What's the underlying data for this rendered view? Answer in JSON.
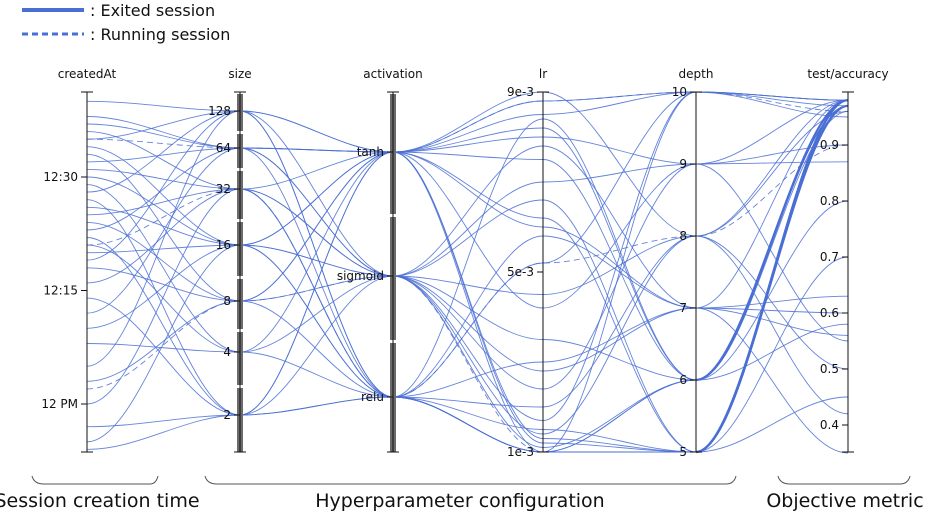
{
  "legend": [
    {
      "label": ": Exited session",
      "style": "solid"
    },
    {
      "label": ": Running session",
      "style": "dashed"
    }
  ],
  "groups": [
    {
      "label": "Session creation time",
      "axes": [
        "createdAt"
      ]
    },
    {
      "label": "Hyperparameter configuration",
      "axes": [
        "size",
        "activation",
        "lr",
        "depth"
      ]
    },
    {
      "label": "Objective metric",
      "axes": [
        "test/accuracy"
      ]
    }
  ],
  "colors": {
    "line": "#4a6fd4",
    "axis": "#111111",
    "bar": "#6b6b6b"
  },
  "chart_data": {
    "type": "parallel-coordinates",
    "axes": [
      {
        "key": "createdAt",
        "label": "createdAt",
        "scale": "time",
        "ticks": [
          "12 PM",
          "12:15",
          "12:30"
        ],
        "range": [
          "11:53",
          "12:41"
        ]
      },
      {
        "key": "size",
        "label": "size",
        "scale": "log2",
        "ticks": [
          "2",
          "4",
          "8",
          "16",
          "32",
          "64",
          "128"
        ],
        "values": [
          2,
          4,
          8,
          16,
          32,
          64,
          128
        ]
      },
      {
        "key": "activation",
        "label": "activation",
        "scale": "categorical",
        "ticks": [
          "tanh",
          "sigmoid",
          "relu"
        ],
        "values": [
          "tanh",
          "sigmoid",
          "relu"
        ]
      },
      {
        "key": "lr",
        "label": "lr",
        "scale": "linear",
        "ticks": [
          "9e-3",
          "5e-3",
          "1e-3"
        ],
        "range": [
          0.001,
          0.009
        ]
      },
      {
        "key": "depth",
        "label": "depth",
        "scale": "linear",
        "ticks": [
          "10",
          "9",
          "8",
          "7",
          "6",
          "5"
        ],
        "range": [
          5,
          10
        ]
      },
      {
        "key": "test/accuracy",
        "label": "test/accuracy",
        "scale": "linear",
        "ticks": [
          "0.9",
          "0.8",
          "0.7",
          "0.6",
          "0.5",
          "0.4"
        ],
        "range": [
          0.35,
          0.99
        ]
      }
    ],
    "sessions": [
      {
        "createdAt": "12:40",
        "size": 128,
        "activation": "tanh",
        "lr": 0.0085,
        "depth": 10,
        "test/accuracy": 0.98,
        "status": "exited"
      },
      {
        "createdAt": "12:38",
        "size": 64,
        "activation": "tanh",
        "lr": 0.0012,
        "depth": 5,
        "test/accuracy": 0.97,
        "status": "exited"
      },
      {
        "createdAt": "12:37",
        "size": 64,
        "activation": "sigmoid",
        "lr": 0.0045,
        "depth": 8,
        "test/accuracy": 0.96,
        "status": "exited"
      },
      {
        "createdAt": "12:36",
        "size": 32,
        "activation": "relu",
        "lr": 0.001,
        "depth": 6,
        "test/accuracy": 0.97,
        "status": "exited"
      },
      {
        "createdAt": "12:35",
        "size": 128,
        "activation": "sigmoid",
        "lr": 0.007,
        "depth": 9,
        "test/accuracy": 0.55,
        "status": "exited"
      },
      {
        "createdAt": "12:34",
        "size": 16,
        "activation": "tanh",
        "lr": 0.0088,
        "depth": 10,
        "test/accuracy": 0.98,
        "status": "exited"
      },
      {
        "createdAt": "12:33",
        "size": 8,
        "activation": "relu",
        "lr": 0.003,
        "depth": 7,
        "test/accuracy": 0.63,
        "status": "exited"
      },
      {
        "createdAt": "12:32",
        "size": 64,
        "activation": "relu",
        "lr": 0.0015,
        "depth": 5,
        "test/accuracy": 0.98,
        "status": "exited"
      },
      {
        "createdAt": "12:31",
        "size": 32,
        "activation": "tanh",
        "lr": 0.006,
        "depth": 7,
        "test/accuracy": 0.6,
        "status": "exited"
      },
      {
        "createdAt": "12:30",
        "size": 16,
        "activation": "sigmoid",
        "lr": 0.0011,
        "depth": 6,
        "test/accuracy": 0.96,
        "status": "exited"
      },
      {
        "createdAt": "12:29",
        "size": 4,
        "activation": "tanh",
        "lr": 0.008,
        "depth": 9,
        "test/accuracy": 0.9,
        "status": "exited"
      },
      {
        "createdAt": "12:28",
        "size": 128,
        "activation": "relu",
        "lr": 0.002,
        "depth": 8,
        "test/accuracy": 0.42,
        "status": "exited"
      },
      {
        "createdAt": "12:27",
        "size": 2,
        "activation": "tanh",
        "lr": 0.001,
        "depth": 5,
        "test/accuracy": 0.98,
        "status": "exited"
      },
      {
        "createdAt": "12:26",
        "size": 16,
        "activation": "relu",
        "lr": 0.0052,
        "depth": 10,
        "test/accuracy": 0.95,
        "status": "exited"
      },
      {
        "createdAt": "12:25",
        "size": 32,
        "activation": "sigmoid",
        "lr": 0.0035,
        "depth": 6,
        "test/accuracy": 0.8,
        "status": "exited"
      },
      {
        "createdAt": "12:24",
        "size": 8,
        "activation": "tanh",
        "lr": 0.0013,
        "depth": 5,
        "test/accuracy": 0.97,
        "status": "exited"
      },
      {
        "createdAt": "12:23",
        "size": 64,
        "activation": "sigmoid",
        "lr": 0.0078,
        "depth": 7,
        "test/accuracy": 0.35,
        "status": "exited"
      },
      {
        "createdAt": "12:22",
        "size": 2,
        "activation": "sigmoid",
        "lr": 0.0024,
        "depth": 9,
        "test/accuracy": 0.98,
        "status": "exited"
      },
      {
        "createdAt": "12:21",
        "size": 4,
        "activation": "relu",
        "lr": 0.001,
        "depth": 6,
        "test/accuracy": 0.97,
        "status": "exited"
      },
      {
        "createdAt": "12:20",
        "size": 16,
        "activation": "tanh",
        "lr": 0.009,
        "depth": 8,
        "test/accuracy": 0.5,
        "status": "exited"
      },
      {
        "createdAt": "12:19",
        "size": 128,
        "activation": "tanh",
        "lr": 0.0062,
        "depth": 5,
        "test/accuracy": 0.7,
        "status": "exited"
      },
      {
        "createdAt": "12:18",
        "size": 8,
        "activation": "sigmoid",
        "lr": 0.0017,
        "depth": 10,
        "test/accuracy": 0.98,
        "status": "exited"
      },
      {
        "createdAt": "12:16",
        "size": 32,
        "activation": "relu",
        "lr": 0.0084,
        "depth": 6,
        "test/accuracy": 0.58,
        "status": "exited"
      },
      {
        "createdAt": "12:14",
        "size": 2,
        "activation": "relu",
        "lr": 0.001,
        "depth": 5,
        "test/accuracy": 0.97,
        "status": "exited"
      },
      {
        "createdAt": "12:12",
        "size": 64,
        "activation": "tanh",
        "lr": 0.0042,
        "depth": 9,
        "test/accuracy": 0.87,
        "status": "exited"
      },
      {
        "createdAt": "12:10",
        "size": 16,
        "activation": "sigmoid",
        "lr": 0.0028,
        "depth": 7,
        "test/accuracy": 0.98,
        "status": "exited"
      },
      {
        "createdAt": "12:08",
        "size": 4,
        "activation": "sigmoid",
        "lr": 0.0066,
        "depth": 5,
        "test/accuracy": 0.45,
        "status": "exited"
      },
      {
        "createdAt": "12:05",
        "size": 128,
        "activation": "relu",
        "lr": 0.001,
        "depth": 10,
        "test/accuracy": 0.97,
        "status": "exited"
      },
      {
        "createdAt": "12:03",
        "size": 8,
        "activation": "tanh",
        "lr": 0.0082,
        "depth": 6,
        "test/accuracy": 0.97,
        "status": "exited"
      },
      {
        "createdAt": "12:00",
        "size": 32,
        "activation": "sigmoid",
        "lr": 0.0014,
        "depth": 8,
        "test/accuracy": 0.98,
        "status": "exited"
      },
      {
        "createdAt": "11:57",
        "size": 2,
        "activation": "relu",
        "lr": 0.001,
        "depth": 5,
        "test/accuracy": 0.98,
        "status": "exited"
      },
      {
        "createdAt": "11:55",
        "size": 16,
        "activation": "relu",
        "lr": 0.0058,
        "depth": 7,
        "test/accuracy": 0.56,
        "status": "exited"
      },
      {
        "createdAt": "11:54",
        "size": 2,
        "activation": "tanh",
        "lr": 0.0075,
        "depth": 6,
        "test/accuracy": 0.97,
        "status": "exited"
      },
      {
        "createdAt": "12:35",
        "size": 64,
        "activation": "tanh",
        "lr": 0.0088,
        "depth": 10,
        "test/accuracy": 0.96,
        "status": "running"
      },
      {
        "createdAt": "12:21",
        "size": 32,
        "activation": "relu",
        "lr": 0.0052,
        "depth": 8,
        "test/accuracy": 0.9,
        "status": "running"
      },
      {
        "createdAt": "12:02",
        "size": 8,
        "activation": "sigmoid",
        "lr": 0.001,
        "depth": 5,
        "test/accuracy": 0.97,
        "status": "running"
      }
    ]
  }
}
